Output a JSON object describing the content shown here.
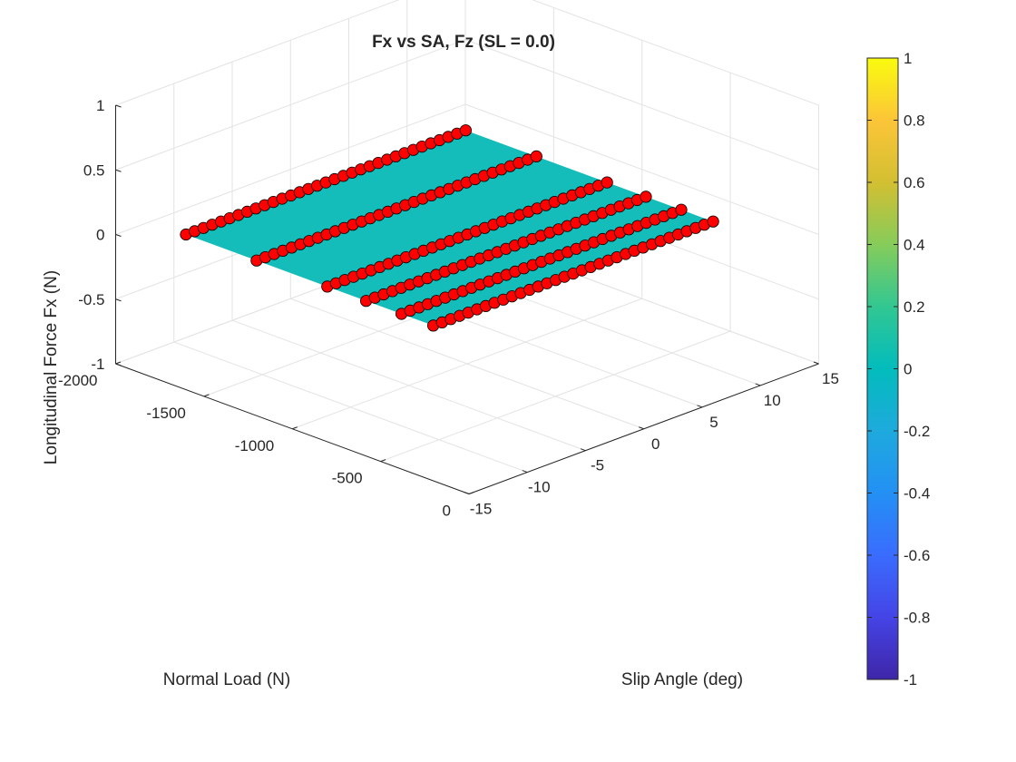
{
  "chart_data": {
    "type": "surface",
    "title": "Fx vs SA, Fz (SL = 0.0)",
    "xlabel": "Slip Angle (deg)",
    "ylabel": "Normal Load (N)",
    "zlabel": "Longitudinal Force Fx (N)",
    "xlim": [
      -15,
      15
    ],
    "ylim": [
      -2000,
      0
    ],
    "zlim": [
      -1,
      1
    ],
    "x_ticks": [
      "-15",
      "-10",
      "-5",
      "0",
      "5",
      "10",
      "15"
    ],
    "y_ticks": [
      "-2000",
      "-1500",
      "-1000",
      "-500",
      "0"
    ],
    "z_ticks": [
      "-1",
      "-0.5",
      "0",
      "0.5",
      "1"
    ],
    "colorbar": {
      "limits": [
        -1,
        1
      ],
      "ticks": [
        "1",
        "0.8",
        "0.6",
        "0.4",
        "0.2",
        "0",
        "-0.2",
        "-0.4",
        "-0.6",
        "-0.8",
        "-1"
      ],
      "colormap": "parula"
    },
    "surface": {
      "value": 0,
      "color": "#14bdb9"
    },
    "markers": {
      "color": "#ff0000",
      "edge_color": "#000000",
      "slip_angle_min": -12,
      "slip_angle_max": 12,
      "slip_angle_step": 0.75,
      "z_value": 0
    },
    "series": [
      {
        "normal_load": -1800
      },
      {
        "normal_load": -1400
      },
      {
        "normal_load": -1000
      },
      {
        "normal_load": -780
      },
      {
        "normal_load": -580
      },
      {
        "normal_load": -400
      }
    ],
    "grid": true
  }
}
